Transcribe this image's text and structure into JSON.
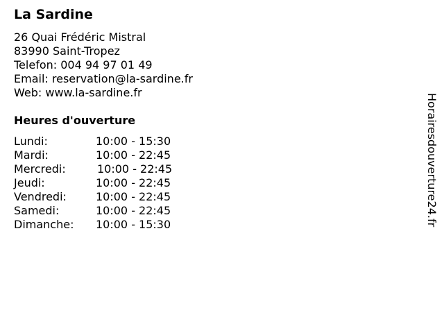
{
  "name": "La Sardine",
  "address": [
    "26 Quai Frédéric Mistral",
    "83990 Saint-Tropez",
    "Telefon: 004 94 97 01 49",
    "Email: reservation@la-sardine.fr",
    "Web: www.la-sardine.fr"
  ],
  "hours_heading": "Heures d'ouverture",
  "hours": [
    {
      "day": "Lundi:",
      "time": "10:00 - 15:30"
    },
    {
      "day": "Mardi:",
      "time": "10:00 - 22:45"
    },
    {
      "day": "Mercredi:",
      "time": "10:00 - 22:45"
    },
    {
      "day": "Jeudi:",
      "time": "10:00 - 22:45"
    },
    {
      "day": "Vendredi:",
      "time": "10:00 - 22:45"
    },
    {
      "day": "Samedi:",
      "time": "10:00 - 22:45"
    },
    {
      "day": "Dimanche:",
      "time": "10:00 - 15:30"
    }
  ],
  "watermark": "Horairesdouverture24.fr"
}
